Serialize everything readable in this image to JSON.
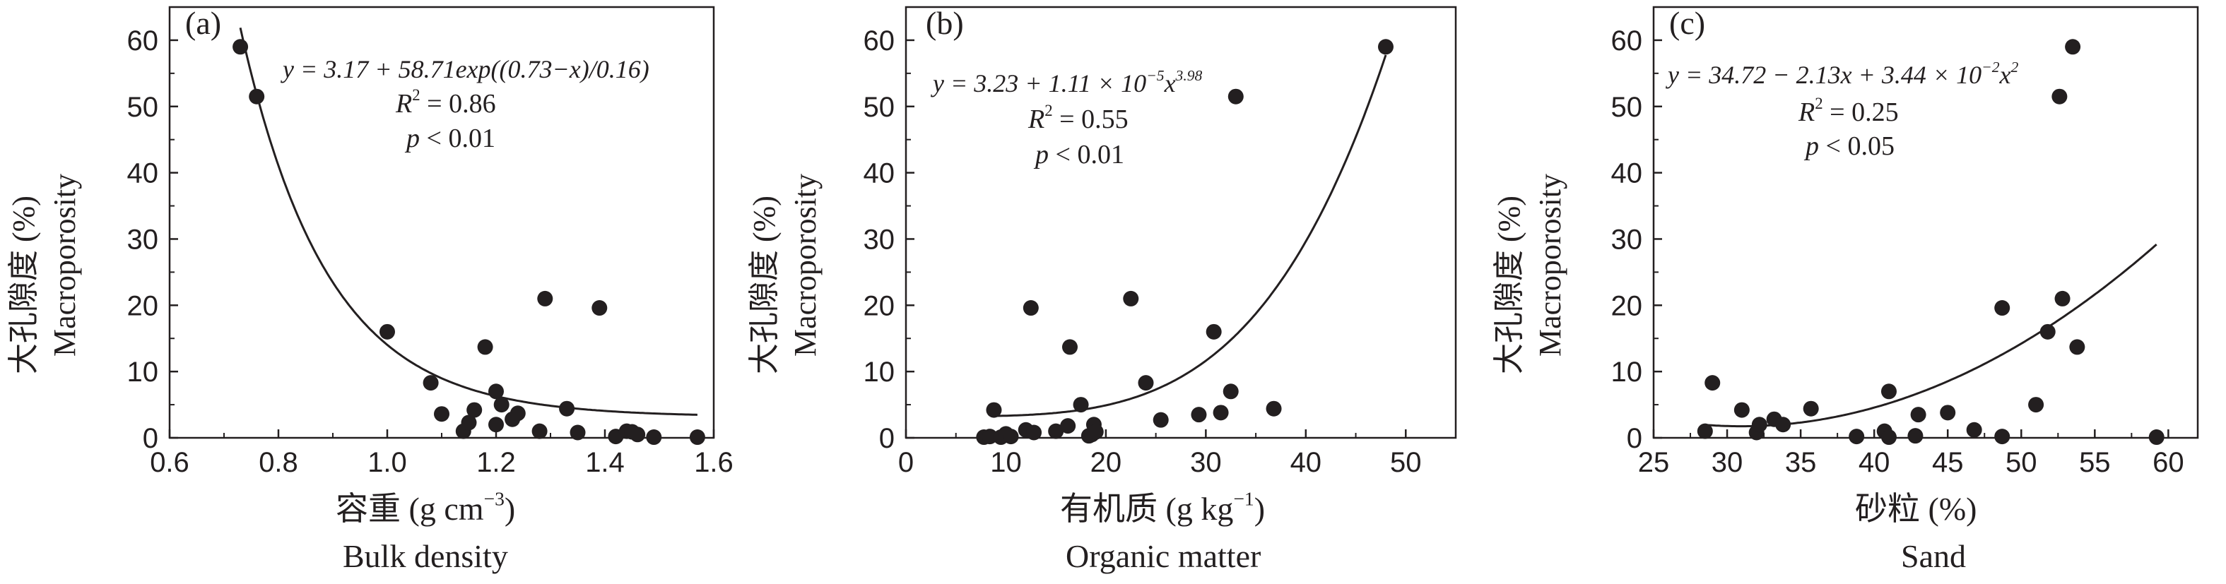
{
  "chart_data": [
    {
      "type": "scatter",
      "panel_label": "(a)",
      "equation": "y = 3.17 + 58.71exp((0.73−x)/0.16)",
      "r2_label": "R",
      "r2_value": "0.86",
      "p_label": "p",
      "p_value": "0.01",
      "ylabel_cn": "大孔隙度 (%)",
      "ylabel_en": "Macroporosity",
      "xlabel_cn": "容重 (g cm",
      "xlabel_cn_sup": "−3",
      "xlabel_cn_end": ")",
      "xlabel_en": "Bulk density",
      "xlim": [
        0.6,
        1.6
      ],
      "ylim": [
        0,
        65
      ],
      "xticks": [
        "0.6",
        "0.8",
        "1.0",
        "1.2",
        "1.4",
        "1.6"
      ],
      "yticks": [
        "0",
        "10",
        "20",
        "30",
        "40",
        "50",
        "60"
      ],
      "fit": {
        "kind": "exp",
        "a": 3.17,
        "b": 58.71,
        "c": 0.73,
        "d": 0.16,
        "xmin": 0.73,
        "xmax": 1.57
      },
      "points": [
        [
          0.73,
          59
        ],
        [
          0.76,
          51.5
        ],
        [
          1.0,
          16
        ],
        [
          1.08,
          8.3
        ],
        [
          1.1,
          3.6
        ],
        [
          1.14,
          1
        ],
        [
          1.15,
          2.3
        ],
        [
          1.16,
          4.2
        ],
        [
          1.18,
          13.7
        ],
        [
          1.2,
          7
        ],
        [
          1.2,
          2
        ],
        [
          1.21,
          5
        ],
        [
          1.23,
          2.8
        ],
        [
          1.24,
          3.7
        ],
        [
          1.28,
          1
        ],
        [
          1.29,
          21
        ],
        [
          1.33,
          4.4
        ],
        [
          1.35,
          0.8
        ],
        [
          1.39,
          19.6
        ],
        [
          1.42,
          0.2
        ],
        [
          1.44,
          1
        ],
        [
          1.45,
          0.9
        ],
        [
          1.46,
          0.5
        ],
        [
          1.49,
          0.1
        ],
        [
          1.57,
          0.1
        ]
      ]
    },
    {
      "type": "scatter",
      "panel_label": "(b)",
      "equation": "y = 3.23 + 1.11 × 10",
      "equation_sup1": "−5",
      "equation_mid": "x",
      "equation_sup2": "3.98",
      "r2_label": "R",
      "r2_value": "0.55",
      "p_label": "p",
      "p_value": "0.01",
      "ylabel_cn": "大孔隙度 (%)",
      "ylabel_en": "Macroporosity",
      "xlabel_cn": "有机质 (g kg",
      "xlabel_cn_sup": "−1",
      "xlabel_cn_end": ")",
      "xlabel_en": "Organic matter",
      "xlim": [
        0,
        55
      ],
      "ylim": [
        0,
        65
      ],
      "xticks": [
        "0",
        "10",
        "20",
        "30",
        "40",
        "50"
      ],
      "yticks": [
        "0",
        "10",
        "20",
        "30",
        "40",
        "50",
        "60"
      ],
      "fit": {
        "kind": "pow",
        "a": 3.23,
        "b": 1.11e-05,
        "n": 3.98,
        "xmin": 8.5,
        "xmax": 48
      },
      "points": [
        [
          7.8,
          0.1
        ],
        [
          8.4,
          0.2
        ],
        [
          8.8,
          4.2
        ],
        [
          9.5,
          0.1
        ],
        [
          10,
          0.6
        ],
        [
          10.5,
          0.2
        ],
        [
          12,
          1.2
        ],
        [
          12.5,
          19.6
        ],
        [
          12.8,
          0.8
        ],
        [
          15,
          1
        ],
        [
          16.2,
          1.8
        ],
        [
          16.4,
          13.7
        ],
        [
          17.5,
          5
        ],
        [
          18.3,
          0.3
        ],
        [
          18.6,
          0.5
        ],
        [
          18.8,
          2
        ],
        [
          19,
          0.9
        ],
        [
          22.5,
          21
        ],
        [
          24,
          8.3
        ],
        [
          25.5,
          2.7
        ],
        [
          29.3,
          3.5
        ],
        [
          30.8,
          16
        ],
        [
          31.5,
          3.8
        ],
        [
          32.5,
          7
        ],
        [
          33,
          51.5
        ],
        [
          36.8,
          4.4
        ],
        [
          48,
          59
        ]
      ]
    },
    {
      "type": "scatter",
      "panel_label": "(c)",
      "equation": "y = 34.72 − 2.13x + 3.44 × 10",
      "equation_sup1": "−2",
      "equation_mid": "x",
      "equation_sup2": "2",
      "r2_label": "R",
      "r2_value": "0.25",
      "p_label": "p",
      "p_value": "0.05",
      "ylabel_cn": "大孔隙度 (%)",
      "ylabel_en": "Macroporosity",
      "xlabel_cn": "砂粒 (%)",
      "xlabel_cn_sup": "",
      "xlabel_cn_end": "",
      "xlabel_en": "Sand",
      "xlim": [
        25,
        62
      ],
      "ylim": [
        0,
        65
      ],
      "xticks": [
        "25",
        "30",
        "35",
        "40",
        "45",
        "50",
        "55",
        "60"
      ],
      "yticks": [
        "0",
        "10",
        "20",
        "30",
        "40",
        "50",
        "60"
      ],
      "fit": {
        "kind": "quad",
        "a": 34.72,
        "b": -2.13,
        "c": 0.0344,
        "xmin": 28.5,
        "xmax": 59.2
      },
      "points": [
        [
          28.5,
          1
        ],
        [
          29,
          8.3
        ],
        [
          31,
          4.2
        ],
        [
          32,
          0.8
        ],
        [
          32.2,
          2
        ],
        [
          33.2,
          2.8
        ],
        [
          33.8,
          2
        ],
        [
          35.7,
          4.4
        ],
        [
          38.8,
          0.2
        ],
        [
          40.7,
          1
        ],
        [
          41,
          0.1
        ],
        [
          41,
          7
        ],
        [
          42.8,
          0.3
        ],
        [
          43,
          3.5
        ],
        [
          45,
          3.8
        ],
        [
          46.8,
          1.2
        ],
        [
          48.7,
          0.2
        ],
        [
          48.7,
          19.6
        ],
        [
          51,
          5
        ],
        [
          51.8,
          16
        ],
        [
          52.6,
          51.5
        ],
        [
          52.8,
          21
        ],
        [
          53.5,
          59
        ],
        [
          53.8,
          13.7
        ],
        [
          59.2,
          0.1
        ]
      ]
    }
  ]
}
